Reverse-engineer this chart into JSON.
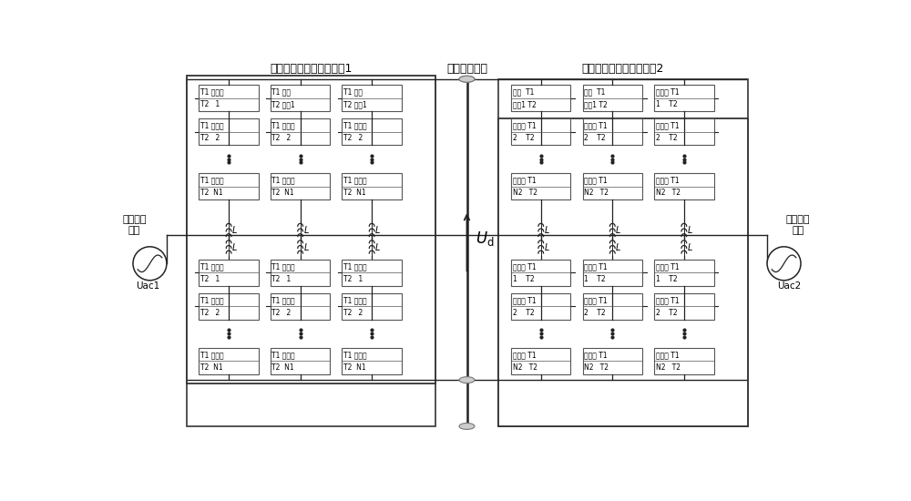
{
  "title_left": "第一模块化多电平换流器1",
  "title_mid": "直流线输电路",
  "title_right": "第二模块化多电平换流器2",
  "left_sys_label": "第一交流\n系统",
  "right_sys_label": "第二交流\n系统",
  "uac1": "Uac1",
  "uac2": "Uac2",
  "ud": "$U_{\\mathrm{d}}$",
  "figsize": [
    10.0,
    5.5
  ],
  "dpi": 100,
  "left_upper_cols": [
    [
      [
        "T1 子模块",
        "T2   1"
      ],
      [
        "T1 子模块",
        "T2   2"
      ],
      [
        "T1 子模块",
        "T2  N1"
      ]
    ],
    [
      [
        "T1 功率",
        "T2 单元1"
      ],
      [
        "T1 子模块",
        "T2   2"
      ],
      [
        "T1 子模块",
        "T2  N1"
      ]
    ],
    [
      [
        "T1 功率",
        "T2 单元1"
      ],
      [
        "T1 子模块",
        "T2   2"
      ],
      [
        "T1 子模块",
        "T2  N1"
      ]
    ]
  ],
  "left_lower_cols": [
    [
      [
        "T1 子模块",
        "T2   1"
      ],
      [
        "T1 子模块",
        "T2   2"
      ],
      [
        "T1 子模块",
        "T2  N1"
      ]
    ],
    [
      [
        "T1 子模块",
        "T2   1"
      ],
      [
        "T1 子模块",
        "T2   2"
      ],
      [
        "T1 子模块",
        "T2  N1"
      ]
    ],
    [
      [
        "T1 子模块",
        "T2   1"
      ],
      [
        "T1 子模块",
        "T2   2"
      ],
      [
        "T1 子模块",
        "T2  N1"
      ]
    ]
  ],
  "right_upper_cols": [
    [
      [
        "功率  T1",
        "单元1 T2"
      ],
      [
        "子模块 T1",
        "2    T2"
      ],
      [
        "子模块 T1",
        "N2   T2"
      ]
    ],
    [
      [
        "功率  T1",
        "单元1 T2"
      ],
      [
        "子模块 T1",
        "2    T2"
      ],
      [
        "子模块 T1",
        "N2   T2"
      ]
    ],
    [
      [
        "子模块 T1",
        "1    T2"
      ],
      [
        "子模块 T1",
        "2    T2"
      ],
      [
        "子模块 T1",
        "N2   T2"
      ]
    ]
  ],
  "right_lower_cols": [
    [
      [
        "子模块 T1",
        "1    T2"
      ],
      [
        "子模块 T1",
        "2    T2"
      ],
      [
        "子模块 T1",
        "N2   T2"
      ]
    ],
    [
      [
        "子模块 T1",
        "1    T2"
      ],
      [
        "子模块 T1",
        "2    T2"
      ],
      [
        "子模块 T1",
        "N2   T2"
      ]
    ],
    [
      [
        "子模块 T1",
        "1    T2"
      ],
      [
        "子模块 T1",
        "2    T2"
      ],
      [
        "子模块 T1",
        "N2   T2"
      ]
    ]
  ]
}
